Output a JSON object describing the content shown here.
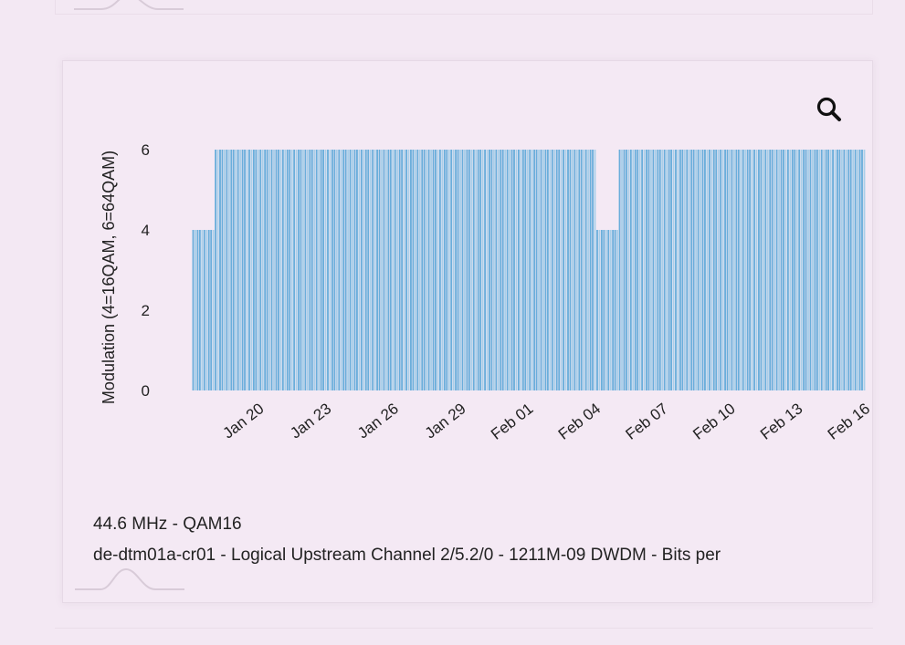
{
  "zoom": {
    "icon": "search-icon"
  },
  "caption": {
    "title": "44.6 MHz - QAM16",
    "subtitle": "de-dtm01a-cr01 - Logical Upstream Channel 2/5.2/0 - 1211M-09 DWDM - Bits per"
  },
  "colors": {
    "bar": "#6aaedb",
    "bar_light": "#a9cfe9",
    "axis_text": "#222222",
    "background": "#f4e9f4"
  },
  "chart_data": {
    "type": "bar",
    "ylabel": "Modulation (4=16QAM, 6=64QAM)",
    "xlabel": "",
    "ylim": [
      0,
      6
    ],
    "yticks": [
      0,
      2,
      4,
      6
    ],
    "xlim": [
      "2024-01-17",
      "2024-02-17"
    ],
    "xticks": [
      {
        "date": "2024-01-20",
        "label": "Jan 20"
      },
      {
        "date": "2024-01-23",
        "label": "Jan 23"
      },
      {
        "date": "2024-01-26",
        "label": "Jan 26"
      },
      {
        "date": "2024-01-29",
        "label": "Jan 29"
      },
      {
        "date": "2024-02-01",
        "label": "Feb 01"
      },
      {
        "date": "2024-02-04",
        "label": "Feb 04"
      },
      {
        "date": "2024-02-07",
        "label": "Feb 07"
      },
      {
        "date": "2024-02-10",
        "label": "Feb 10"
      },
      {
        "date": "2024-02-13",
        "label": "Feb 13"
      },
      {
        "date": "2024-02-16",
        "label": "Feb 16"
      }
    ],
    "bars": [
      {
        "start": "2024-01-18",
        "end": "2024-01-19",
        "value": 4
      },
      {
        "start": "2024-01-19",
        "end": "2024-01-20",
        "value": 6
      },
      {
        "start": "2024-01-20",
        "end": "2024-01-21",
        "value": 6
      },
      {
        "start": "2024-01-21",
        "end": "2024-01-22",
        "value": 6
      },
      {
        "start": "2024-01-22",
        "end": "2024-01-23",
        "value": 6
      },
      {
        "start": "2024-01-23",
        "end": "2024-01-24",
        "value": 6
      },
      {
        "start": "2024-01-24",
        "end": "2024-01-25",
        "value": 6
      },
      {
        "start": "2024-01-25",
        "end": "2024-01-26",
        "value": 6
      },
      {
        "start": "2024-01-26",
        "end": "2024-01-27",
        "value": 6
      },
      {
        "start": "2024-01-27",
        "end": "2024-01-28",
        "value": 6
      },
      {
        "start": "2024-01-28",
        "end": "2024-01-29",
        "value": 6
      },
      {
        "start": "2024-01-29",
        "end": "2024-01-30",
        "value": 6
      },
      {
        "start": "2024-01-30",
        "end": "2024-01-31",
        "value": 6
      },
      {
        "start": "2024-01-31",
        "end": "2024-02-01",
        "value": 6
      },
      {
        "start": "2024-02-01",
        "end": "2024-02-02",
        "value": 6
      },
      {
        "start": "2024-02-02",
        "end": "2024-02-03",
        "value": 6
      },
      {
        "start": "2024-02-03",
        "end": "2024-02-04",
        "value": 6
      },
      {
        "start": "2024-02-04",
        "end": "2024-02-05",
        "value": 6
      },
      {
        "start": "2024-02-05",
        "end": "2024-02-06",
        "value": 4
      },
      {
        "start": "2024-02-06",
        "end": "2024-02-07",
        "value": 6
      },
      {
        "start": "2024-02-07",
        "end": "2024-02-08",
        "value": 6
      },
      {
        "start": "2024-02-08",
        "end": "2024-02-09",
        "value": 6
      },
      {
        "start": "2024-02-09",
        "end": "2024-02-10",
        "value": 6
      },
      {
        "start": "2024-02-10",
        "end": "2024-02-11",
        "value": 6
      },
      {
        "start": "2024-02-11",
        "end": "2024-02-12",
        "value": 6
      },
      {
        "start": "2024-02-12",
        "end": "2024-02-13",
        "value": 6
      },
      {
        "start": "2024-02-13",
        "end": "2024-02-14",
        "value": 6
      },
      {
        "start": "2024-02-14",
        "end": "2024-02-15",
        "value": 6
      },
      {
        "start": "2024-02-15",
        "end": "2024-02-16",
        "value": 6
      },
      {
        "start": "2024-02-16",
        "end": "2024-02-17",
        "value": 6
      }
    ],
    "grid": false,
    "legend": "none"
  }
}
